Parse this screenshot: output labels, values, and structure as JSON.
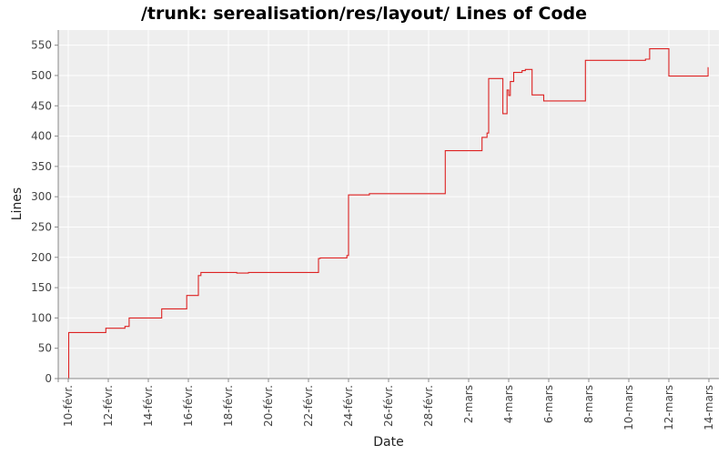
{
  "chart_data": {
    "type": "line",
    "title": "/trunk: serealisation/res/layout/ Lines of Code",
    "xlabel": "Date",
    "ylabel": "Lines",
    "ylim": [
      0,
      575
    ],
    "xlim": [
      "2009-02-09T12:00",
      "2009-03-14T12:00"
    ],
    "y_ticks": [
      0,
      50,
      100,
      150,
      200,
      250,
      300,
      350,
      400,
      450,
      500,
      550
    ],
    "x_ticks": [
      {
        "date": "2009-02-10",
        "label": "10-févr."
      },
      {
        "date": "2009-02-12",
        "label": "12-févr."
      },
      {
        "date": "2009-02-14",
        "label": "14-févr."
      },
      {
        "date": "2009-02-16",
        "label": "16-févr."
      },
      {
        "date": "2009-02-18",
        "label": "18-févr."
      },
      {
        "date": "2009-02-20",
        "label": "20-févr."
      },
      {
        "date": "2009-02-22",
        "label": "22-févr."
      },
      {
        "date": "2009-02-24",
        "label": "24-févr."
      },
      {
        "date": "2009-02-26",
        "label": "26-févr."
      },
      {
        "date": "2009-02-28",
        "label": "28-févr."
      },
      {
        "date": "2009-03-02",
        "label": "2-mars"
      },
      {
        "date": "2009-03-04",
        "label": "4-mars"
      },
      {
        "date": "2009-03-06",
        "label": "6-mars"
      },
      {
        "date": "2009-03-08",
        "label": "8-mars"
      },
      {
        "date": "2009-03-10",
        "label": "10-mars"
      },
      {
        "date": "2009-03-12",
        "label": "12-mars"
      },
      {
        "date": "2009-03-14",
        "label": "14-mars"
      }
    ],
    "grid": true,
    "colors": {
      "line": "#dd2222",
      "plot_background": "#eeeeee",
      "axis": "#888888"
    },
    "series": [
      {
        "step": true,
        "points": [
          [
            "2009-02-10T00:00",
            0
          ],
          [
            "2009-02-10T00:30",
            76
          ],
          [
            "2009-02-11T21:00",
            83
          ],
          [
            "2009-02-12T20:00",
            86
          ],
          [
            "2009-02-13T01:00",
            100
          ],
          [
            "2009-02-14T16:00",
            115
          ],
          [
            "2009-02-15T22:00",
            137
          ],
          [
            "2009-02-16T12:00",
            170
          ],
          [
            "2009-02-16T15:00",
            175
          ],
          [
            "2009-02-18T10:00",
            174
          ],
          [
            "2009-02-19T00:00",
            175
          ],
          [
            "2009-02-22T12:00",
            198
          ],
          [
            "2009-02-22T14:00",
            199
          ],
          [
            "2009-02-23T22:00",
            203
          ],
          [
            "2009-02-24T00:00",
            303
          ],
          [
            "2009-02-25T01:00",
            305
          ],
          [
            "2009-02-28T20:00",
            376
          ],
          [
            "2009-03-02T16:00",
            398
          ],
          [
            "2009-03-02T22:00",
            405
          ],
          [
            "2009-03-03T00:00",
            495
          ],
          [
            "2009-03-03T17:00",
            437
          ],
          [
            "2009-03-03T22:00",
            476
          ],
          [
            "2009-03-04T00:00",
            467
          ],
          [
            "2009-03-04T02:00",
            490
          ],
          [
            "2009-03-04T06:00",
            505
          ],
          [
            "2009-03-04T16:00",
            508
          ],
          [
            "2009-03-04T20:00",
            510
          ],
          [
            "2009-03-05T04:00",
            468
          ],
          [
            "2009-03-05T18:00",
            458
          ],
          [
            "2009-03-07T20:00",
            525
          ],
          [
            "2009-03-10T20:00",
            527
          ],
          [
            "2009-03-11T01:00",
            544
          ],
          [
            "2009-03-12T00:00",
            499
          ],
          [
            "2009-03-13T23:00",
            513
          ]
        ],
        "end": "2009-03-13T23:30"
      }
    ]
  }
}
